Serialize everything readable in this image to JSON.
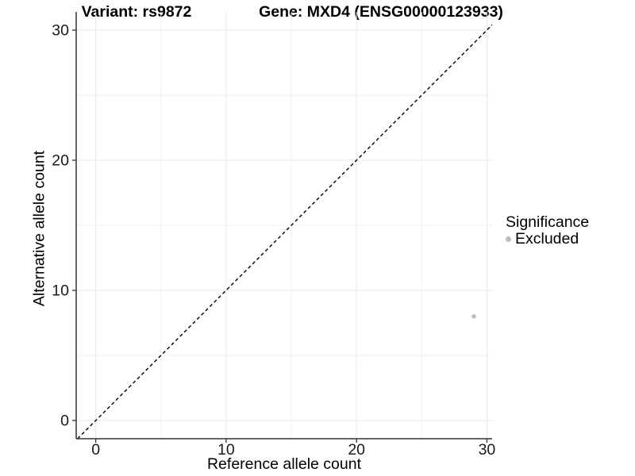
{
  "chart_data": {
    "type": "scatter",
    "title_left": "Variant: rs9872",
    "title_right": "Gene: MXD4 (ENSG00000123933)",
    "xlabel": "Reference allele count",
    "ylabel": "Alternative allele count",
    "xlim": [
      -1.5,
      30.4
    ],
    "ylim": [
      -1.4,
      31.4
    ],
    "xticks": [
      0,
      10,
      20,
      30
    ],
    "yticks": [
      0,
      10,
      20,
      30
    ],
    "xminor": [
      5,
      15,
      25
    ],
    "yminor": [
      5,
      15,
      25
    ],
    "grid": true,
    "legend_position": "right",
    "reference_line": {
      "type": "identity",
      "intercept": 0,
      "slope": 1,
      "style": "dashed",
      "color": "#000000"
    },
    "series": [
      {
        "name": "Excluded",
        "color": "#bdbdbd",
        "marker": "circle",
        "points": [
          {
            "x": 29,
            "y": 8
          }
        ]
      }
    ],
    "legend": {
      "title": "Significance",
      "items": [
        {
          "label": "Excluded",
          "color": "#bdbdbd"
        }
      ]
    },
    "colors": {
      "background": "#ffffff",
      "grid_major": "#e8e8e8",
      "grid_minor": "#f0f0f0",
      "axis_line": "#333333",
      "tick_text": "#1a1a1a",
      "point": "#bdbdbd",
      "reference_line": "#000000"
    }
  }
}
